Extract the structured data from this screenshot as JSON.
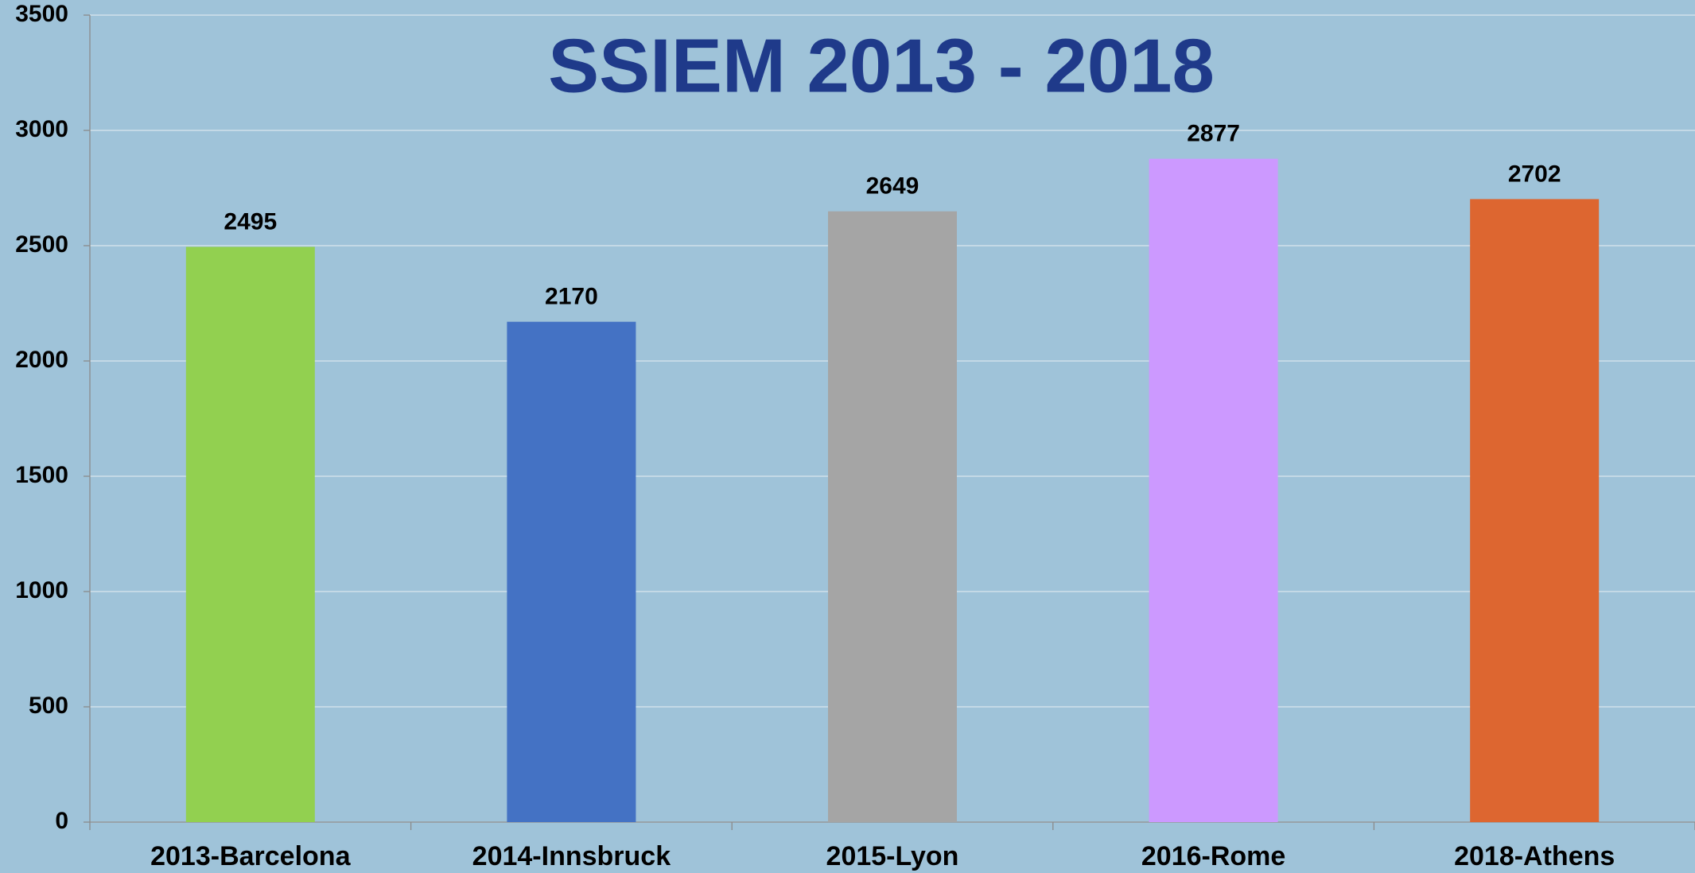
{
  "chart_data": {
    "type": "bar",
    "title": "SSIEM 2013 - 2018",
    "categories": [
      "2013-Barcelona",
      "2014-Innsbruck",
      "2015-Lyon",
      "2016-Rome",
      "2018-Athens"
    ],
    "values": [
      2495,
      2170,
      2649,
      2877,
      2702
    ],
    "colors": [
      "#92d050",
      "#4472c4",
      "#a5a5a5",
      "#cc99ff",
      "#dd6630"
    ],
    "ylim": [
      0,
      3500
    ],
    "yticks": [
      0,
      500,
      1000,
      1500,
      2000,
      2500,
      3000,
      3500
    ],
    "grid": true
  }
}
